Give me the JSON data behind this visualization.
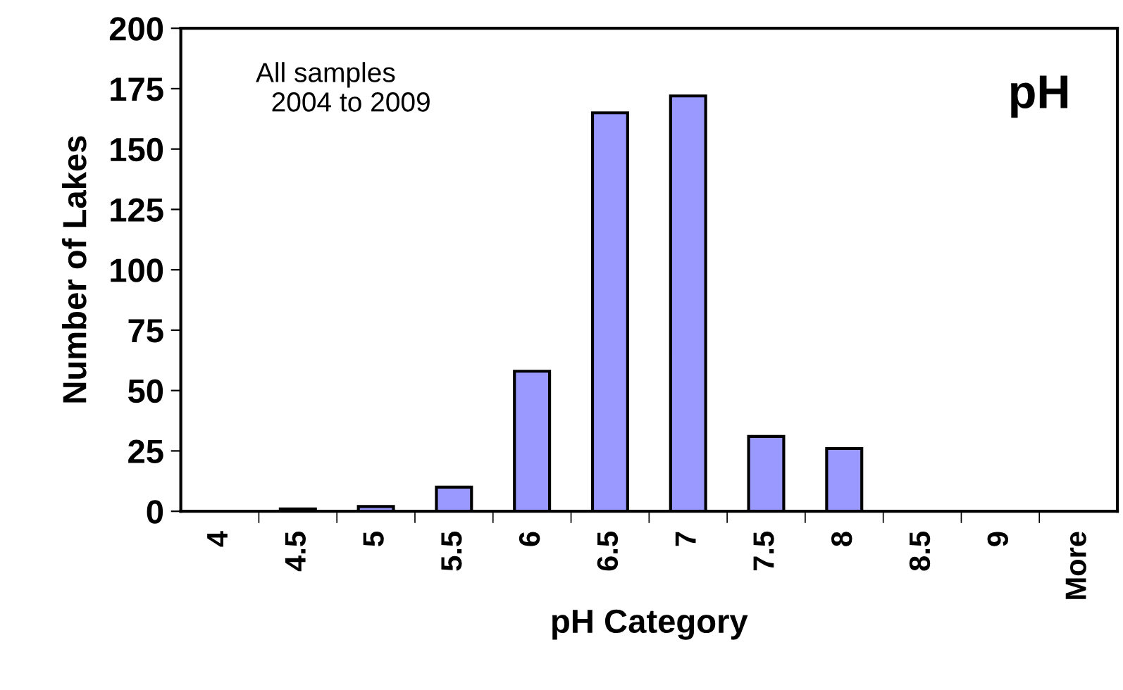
{
  "chart_data": {
    "type": "bar",
    "xlabel": "pH Category",
    "ylabel": "Number of Lakes",
    "categories": [
      "4",
      "4.5",
      "5",
      "5.5",
      "6",
      "6.5",
      "7",
      "7.5",
      "8",
      "8.5",
      "9",
      "More"
    ],
    "values": [
      0,
      1,
      2,
      10,
      58,
      165,
      172,
      31,
      26,
      0,
      0,
      0
    ],
    "color": "#9999ff",
    "ylim": [
      0,
      200
    ],
    "yticks": [
      0,
      25,
      50,
      75,
      100,
      125,
      150,
      175,
      200
    ],
    "grid": false,
    "annotations": [
      "All samples\n  2004 to 2009",
      "pH"
    ]
  }
}
